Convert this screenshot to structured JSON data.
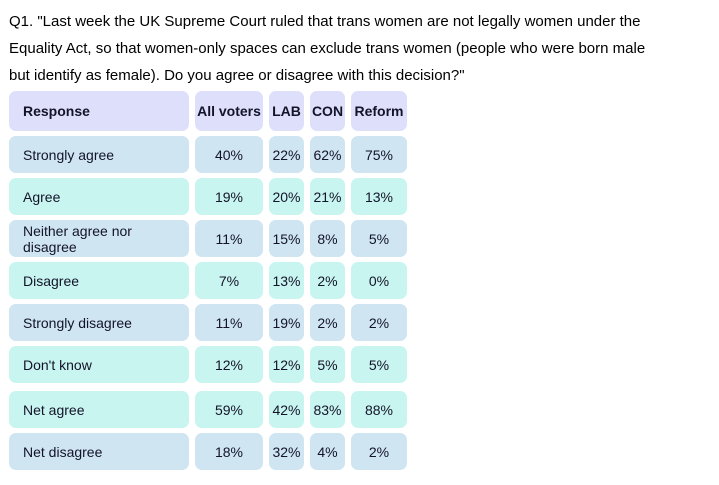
{
  "question": {
    "lines": [
      "Q1. \"Last week the UK Supreme Court ruled that trans women are not legally women under the",
      "Equality Act, so that women-only spaces can exclude trans women (people who were born male",
      "but identify as female). Do you agree or disagree with this decision?\""
    ]
  },
  "colors": {
    "header_bg": "#dee0fb",
    "row_blue": "#cfe5f2",
    "row_cyan": "#c8f5ef",
    "text": "#131329"
  },
  "table": {
    "columns": [
      "Response",
      "All voters",
      "LAB",
      "CON",
      "Reform"
    ],
    "rows": [
      {
        "label": "Strongly agree",
        "values": [
          "40%",
          "22%",
          "62%",
          "75%"
        ]
      },
      {
        "label": "Agree",
        "values": [
          "19%",
          "20%",
          "21%",
          "13%"
        ]
      },
      {
        "label": "Neither agree nor disagree",
        "values": [
          "11%",
          "15%",
          "8%",
          "5%"
        ]
      },
      {
        "label": "Disagree",
        "values": [
          "7%",
          "13%",
          "2%",
          "0%"
        ]
      },
      {
        "label": "Strongly disagree",
        "values": [
          "11%",
          "19%",
          "2%",
          "2%"
        ]
      },
      {
        "label": "Don't know",
        "values": [
          "12%",
          "12%",
          "5%",
          "5%"
        ]
      }
    ],
    "net_rows": [
      {
        "label": "Net agree",
        "values": [
          "59%",
          "42%",
          "83%",
          "88%"
        ]
      },
      {
        "label": "Net disagree",
        "values": [
          "18%",
          "32%",
          "4%",
          "2%"
        ]
      }
    ]
  },
  "chart_data": {
    "type": "table",
    "title": "Q1. \"Last week the UK Supreme Court ruled that trans women are not legally women under the Equality Act, so that women-only spaces can exclude trans women (people who were born male but identify as female). Do you agree or disagree with this decision?\"",
    "columns": [
      "Response",
      "All voters",
      "LAB",
      "CON",
      "Reform"
    ],
    "unit": "%",
    "rows": [
      {
        "response": "Strongly agree",
        "all_voters": 40,
        "lab": 22,
        "con": 62,
        "reform": 75
      },
      {
        "response": "Agree",
        "all_voters": 19,
        "lab": 20,
        "con": 21,
        "reform": 13
      },
      {
        "response": "Neither agree nor disagree",
        "all_voters": 11,
        "lab": 15,
        "con": 8,
        "reform": 5
      },
      {
        "response": "Disagree",
        "all_voters": 7,
        "lab": 13,
        "con": 2,
        "reform": 0
      },
      {
        "response": "Strongly disagree",
        "all_voters": 11,
        "lab": 19,
        "con": 2,
        "reform": 2
      },
      {
        "response": "Don't know",
        "all_voters": 12,
        "lab": 12,
        "con": 5,
        "reform": 5
      },
      {
        "response": "Net agree",
        "all_voters": 59,
        "lab": 42,
        "con": 83,
        "reform": 88
      },
      {
        "response": "Net disagree",
        "all_voters": 18,
        "lab": 32,
        "con": 4,
        "reform": 2
      }
    ]
  }
}
